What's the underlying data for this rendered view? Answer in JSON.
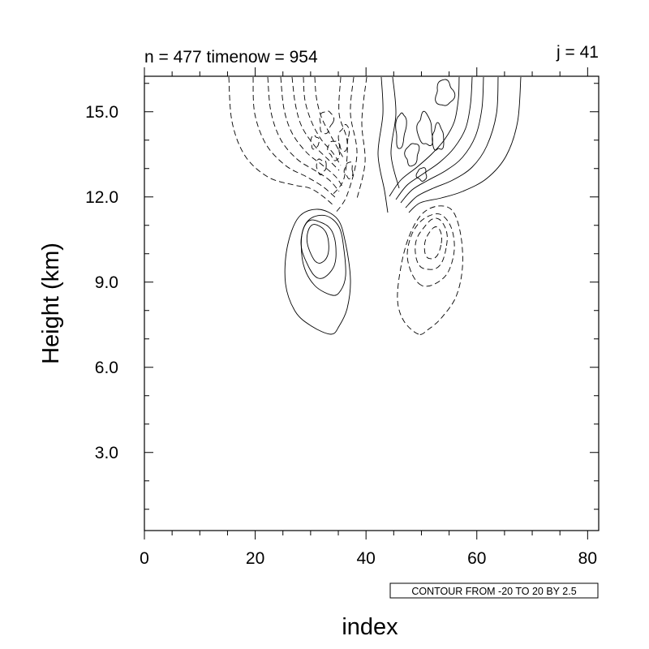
{
  "chart_data": {
    "type": "contour",
    "title_left": "n = 477 timenow = 954",
    "title_right": "j = 41",
    "xlabel": "index",
    "ylabel": "Height (km)",
    "xlim": [
      0,
      82
    ],
    "ylim": [
      0.25,
      16.25
    ],
    "x_ticks": [
      {
        "value": 0,
        "label": "0"
      },
      {
        "value": 20,
        "label": "20"
      },
      {
        "value": 40,
        "label": "40"
      },
      {
        "value": 60,
        "label": "60"
      },
      {
        "value": 80,
        "label": "80"
      }
    ],
    "y_ticks": [
      {
        "value": 3,
        "label": "3.0"
      },
      {
        "value": 6,
        "label": "6.0"
      },
      {
        "value": 9,
        "label": "9.0"
      },
      {
        "value": 12,
        "label": "12.0"
      },
      {
        "value": 15,
        "label": "15.0"
      }
    ],
    "info_label": "CONTOUR FROM -20 TO 20 BY 2.5",
    "contour_levels": {
      "min": -20,
      "max": 20,
      "step": 2.5
    },
    "negative_contours": "dashed",
    "positive_contours": "solid",
    "grid": false,
    "lower_features": [
      {
        "sign": "positive",
        "center": [
          30.5,
          10.2
        ],
        "levels": 4
      },
      {
        "sign": "negative",
        "center": [
          51.5,
          10.0
        ],
        "levels": 4
      }
    ]
  }
}
